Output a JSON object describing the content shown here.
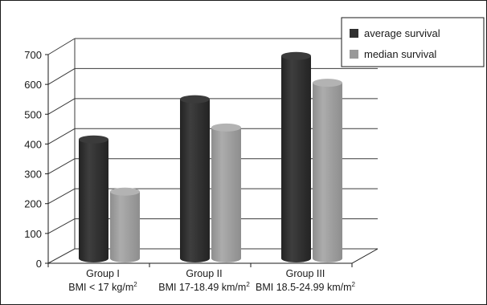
{
  "chart_data": {
    "type": "bar",
    "style": "3d-clustered-column",
    "categories": [
      {
        "line1": "Group I",
        "line2": "BMI < 17 kg/m",
        "sup": "2"
      },
      {
        "line1": "Group II",
        "line2": "BMI 17-18.49 km/m",
        "sup": "2"
      },
      {
        "line1": "Group III",
        "line2": "BMI 18.5-24.99 km/m",
        "sup": "2"
      }
    ],
    "series": [
      {
        "name": "average survival",
        "color": "#2f2f2f",
        "values": [
          410,
          545,
          690
        ]
      },
      {
        "name": "median survival",
        "color": "#999999",
        "values": [
          235,
          450,
          600
        ]
      }
    ],
    "ylim": [
      0,
      700
    ],
    "yticks": [
      "0",
      "100",
      "200",
      "300",
      "400",
      "500",
      "600",
      "700"
    ],
    "grid": true,
    "legend_position": "top-right"
  }
}
